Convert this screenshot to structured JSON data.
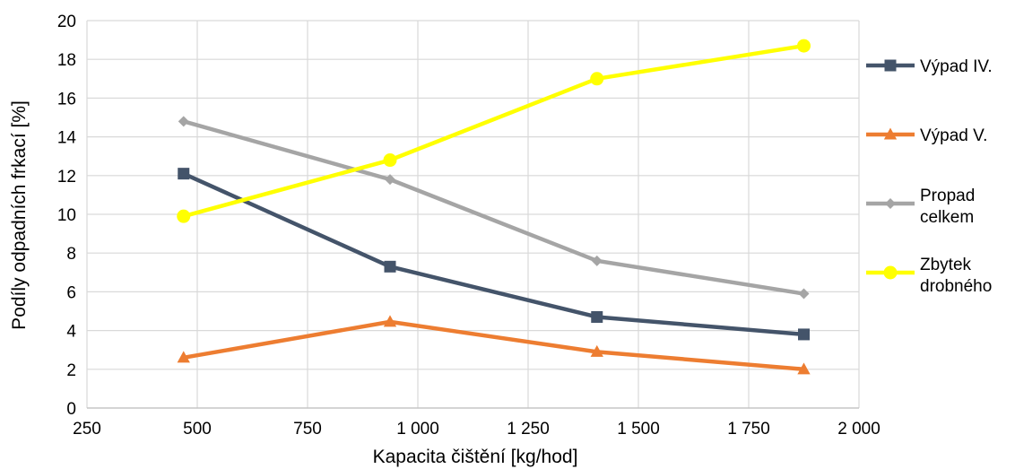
{
  "chart_data": {
    "type": "scatter",
    "xlabel": "Kapacita čištění [kg/hod]",
    "ylabel": "Podíly odpadních frkací [%]",
    "xlim": [
      250,
      2000
    ],
    "ylim": [
      0,
      20
    ],
    "x_ticks": [
      "250",
      "500",
      "750",
      "1 000",
      "1 250",
      "1 500",
      "1 750",
      "2 000"
    ],
    "x_tick_values": [
      250,
      500,
      750,
      1000,
      1250,
      1500,
      1750,
      2000
    ],
    "y_ticks": [
      "0",
      "2",
      "4",
      "6",
      "8",
      "10",
      "12",
      "14",
      "16",
      "18",
      "20"
    ],
    "y_tick_values": [
      0,
      2,
      4,
      6,
      8,
      10,
      12,
      14,
      16,
      18,
      20
    ],
    "grid": true,
    "legend_position": "right",
    "series": [
      {
        "name": "Výpad IV.",
        "legend_lines": [
          "Výpad IV."
        ],
        "color": "#44546A",
        "marker": "square",
        "x": [
          469,
          937,
          1406,
          1875
        ],
        "y": [
          12.1,
          7.3,
          4.7,
          3.8
        ]
      },
      {
        "name": "Výpad V.",
        "legend_lines": [
          "Výpad V."
        ],
        "color": "#ED7D31",
        "marker": "triangle",
        "x": [
          469,
          937,
          1406,
          1875
        ],
        "y": [
          2.6,
          4.45,
          2.9,
          2.0
        ]
      },
      {
        "name": "Propad celkem",
        "legend_lines": [
          "Propad",
          "celkem"
        ],
        "color": "#A5A5A5",
        "marker": "diamond",
        "x": [
          469,
          937,
          1406,
          1875
        ],
        "y": [
          14.8,
          11.8,
          7.6,
          5.9
        ]
      },
      {
        "name": "Zbytek drobného",
        "legend_lines": [
          "Zbytek",
          "drobného"
        ],
        "color": "#FFFF00",
        "marker": "circle",
        "x": [
          469,
          937,
          1406,
          1875
        ],
        "y": [
          9.9,
          12.8,
          17.0,
          18.7
        ]
      }
    ]
  }
}
